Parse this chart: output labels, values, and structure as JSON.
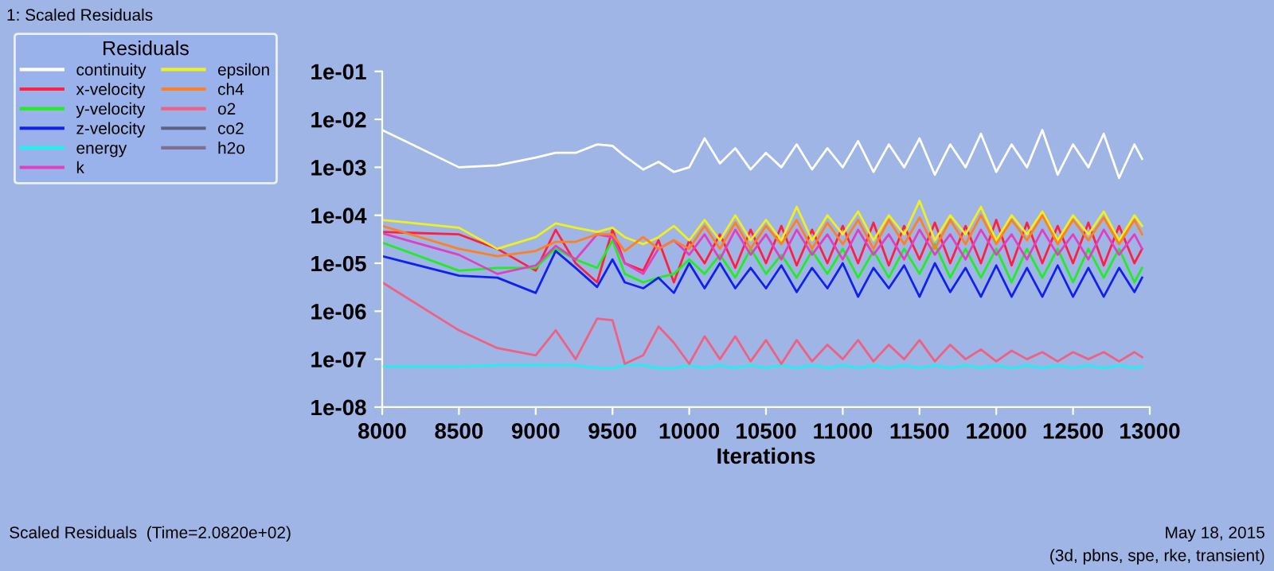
{
  "chart_data": {
    "type": "line",
    "xlabel": "Iterations",
    "legend_title": "Residuals",
    "legend": "top left",
    "log": "y",
    "grid": false,
    "marker": "none",
    "line_style": "solid",
    "annotations": [
      "1: Scaled Residuals",
      "Scaled Residuals  (Time=2.0820e+02)",
      "May 18, 2015",
      "(3d, pbns, spe, rke, transient)"
    ],
    "xlim": [
      8000,
      13000
    ],
    "xticks": [
      8000,
      8500,
      9000,
      9500,
      10000,
      10500,
      11000,
      11500,
      12000,
      12500,
      13000
    ],
    "ylim": [
      1e-08,
      0.1
    ],
    "yticks": [
      {
        "value": 1e-08,
        "label": "1e-08"
      },
      {
        "value": 1e-07,
        "label": "1e-07"
      },
      {
        "value": 1e-06,
        "label": "1e-06"
      },
      {
        "value": 1e-05,
        "label": "1e-05"
      },
      {
        "value": 0.0001,
        "label": "1e-04"
      },
      {
        "value": 0.001,
        "label": "1e-03"
      },
      {
        "value": 0.01,
        "label": "1e-02"
      },
      {
        "value": 0.1,
        "label": "1e-01"
      }
    ],
    "x": [
      8000,
      8500,
      8750,
      9000,
      9130,
      9260,
      9400,
      9500,
      9580,
      9700,
      9800,
      9900,
      10000,
      10100,
      10200,
      10300,
      10400,
      10500,
      10600,
      10700,
      10800,
      10900,
      11000,
      11100,
      11200,
      11300,
      11400,
      11500,
      11600,
      11700,
      11800,
      11900,
      12000,
      12100,
      12200,
      12300,
      12400,
      12500,
      12600,
      12700,
      12800,
      12900,
      12950
    ],
    "series": [
      {
        "name": "continuity",
        "color": "#ffffff",
        "values": [
          0.006,
          0.001,
          0.0011,
          0.0016,
          0.002,
          0.002,
          0.003,
          0.0028,
          0.0017,
          0.0009,
          0.0013,
          0.0008,
          0.001,
          0.004,
          0.0012,
          0.0025,
          0.0009,
          0.002,
          0.001,
          0.003,
          0.0009,
          0.0025,
          0.001,
          0.0035,
          0.0008,
          0.003,
          0.001,
          0.004,
          0.0007,
          0.003,
          0.001,
          0.005,
          0.0008,
          0.003,
          0.001,
          0.006,
          0.0007,
          0.003,
          0.001,
          0.005,
          0.0006,
          0.003,
          0.0015
        ]
      },
      {
        "name": "x-velocity",
        "color": "#ff2040",
        "values": [
          4.5e-05,
          4e-05,
          2e-05,
          7e-06,
          5e-05,
          1e-05,
          4e-06,
          5e-05,
          1e-05,
          7e-06,
          3e-05,
          4e-06,
          3e-05,
          1e-05,
          4e-05,
          8e-06,
          5e-05,
          1e-05,
          6e-05,
          9e-06,
          5e-05,
          1e-05,
          6e-05,
          1e-05,
          7e-05,
          9e-06,
          6e-05,
          1.2e-05,
          7e-05,
          1e-05,
          6e-05,
          1e-05,
          8e-05,
          9e-06,
          7e-05,
          1e-05,
          6e-05,
          1e-05,
          7e-05,
          9e-06,
          6e-05,
          1e-05,
          2e-05
        ]
      },
      {
        "name": "y-velocity",
        "color": "#20ee20",
        "values": [
          2.7e-05,
          7e-06,
          8e-06,
          8e-06,
          2e-05,
          1.2e-05,
          8e-06,
          3e-05,
          6e-06,
          4e-06,
          5e-06,
          6e-06,
          1.2e-05,
          6e-06,
          1.5e-05,
          5e-06,
          2e-05,
          6e-06,
          1.5e-05,
          5e-06,
          1.8e-05,
          6e-06,
          2e-05,
          5e-06,
          1.8e-05,
          5e-06,
          2e-05,
          6e-06,
          2.5e-05,
          5e-06,
          2e-05,
          5e-06,
          2e-05,
          4e-06,
          2e-05,
          5e-06,
          2e-05,
          4e-06,
          2e-05,
          5e-06,
          2e-05,
          4e-06,
          8e-06
        ]
      },
      {
        "name": "z-velocity",
        "color": "#1020f0",
        "values": [
          1.4e-05,
          5.5e-06,
          5e-06,
          2.4e-06,
          1.8e-05,
          8e-06,
          3.2e-06,
          1.2e-05,
          4e-06,
          3e-06,
          5e-06,
          2.4e-06,
          1e-05,
          3e-06,
          1e-05,
          3e-06,
          8e-06,
          3e-06,
          9e-06,
          2.5e-06,
          8e-06,
          3e-06,
          1e-05,
          2e-06,
          8e-06,
          3e-06,
          9e-06,
          2e-06,
          1e-05,
          2.5e-06,
          8e-06,
          2e-06,
          9e-06,
          2e-06,
          8e-06,
          2e-06,
          9e-06,
          2e-06,
          8e-06,
          2e-06,
          8e-06,
          2.5e-06,
          5e-06
        ]
      },
      {
        "name": "energy",
        "color": "#20f0f0",
        "values": [
          7e-08,
          7e-08,
          7.5e-08,
          7.5e-08,
          7.5e-08,
          7.5e-08,
          6.5e-08,
          6.5e-08,
          7.5e-08,
          7.5e-08,
          6.5e-08,
          6.5e-08,
          7.5e-08,
          6.5e-08,
          7.5e-08,
          6.5e-08,
          7.5e-08,
          6.5e-08,
          7.5e-08,
          6.5e-08,
          7.5e-08,
          6.5e-08,
          7.5e-08,
          6.5e-08,
          7.5e-08,
          6.5e-08,
          7.5e-08,
          6.5e-08,
          7.5e-08,
          6.5e-08,
          7.5e-08,
          6.5e-08,
          7.5e-08,
          6.5e-08,
          7.5e-08,
          6.5e-08,
          7.5e-08,
          6.5e-08,
          7.5e-08,
          6.5e-08,
          7.5e-08,
          6.5e-08,
          7e-08
        ]
      },
      {
        "name": "k",
        "color": "#e040c0",
        "values": [
          4.2e-05,
          1.5e-05,
          6e-06,
          9e-06,
          2.3e-05,
          1.2e-05,
          4e-05,
          3.5e-05,
          1e-05,
          6e-06,
          2e-05,
          3e-05,
          1.5e-05,
          4e-05,
          1.2e-05,
          5e-05,
          1.5e-05,
          4e-05,
          1.2e-05,
          5e-05,
          1.5e-05,
          4e-05,
          1.2e-05,
          5e-05,
          1.5e-05,
          4e-05,
          1.2e-05,
          5e-05,
          1.5e-05,
          4e-05,
          1.2e-05,
          5e-05,
          1.5e-05,
          4e-05,
          1.2e-05,
          5e-05,
          1.5e-05,
          4e-05,
          1.2e-05,
          5e-05,
          1.5e-05,
          4e-05,
          2e-05
        ]
      },
      {
        "name": "epsilon",
        "color": "#f0f020",
        "values": [
          8e-05,
          5.5e-05,
          2e-05,
          3.5e-05,
          6.8e-05,
          5.5e-05,
          4.5e-05,
          5.5e-05,
          3.5e-05,
          2.5e-05,
          3.5e-05,
          6e-05,
          3e-05,
          8e-05,
          3e-05,
          0.0001,
          3e-05,
          8e-05,
          3e-05,
          0.00015,
          3e-05,
          0.0001,
          4e-05,
          0.00012,
          3e-05,
          0.0001,
          4e-05,
          0.0002,
          3e-05,
          0.0001,
          4e-05,
          0.00015,
          3e-05,
          0.0001,
          4e-05,
          0.00012,
          3e-05,
          0.0001,
          4e-05,
          0.00012,
          3e-05,
          0.0001,
          6e-05
        ]
      },
      {
        "name": "ch4",
        "color": "#ff8020",
        "values": [
          6e-05,
          2e-05,
          1.4e-05,
          1.8e-05,
          2.8e-05,
          2.8e-05,
          4e-05,
          4e-05,
          1.8e-05,
          3.5e-05,
          2e-05,
          3e-05,
          2e-05,
          6e-05,
          2e-05,
          7e-05,
          2e-05,
          6e-05,
          2.5e-05,
          8e-05,
          2e-05,
          7e-05,
          2.5e-05,
          8e-05,
          2e-05,
          8e-05,
          2.5e-05,
          9e-05,
          2e-05,
          8e-05,
          2.5e-05,
          0.0001,
          2.5e-05,
          8e-05,
          3e-05,
          0.0001,
          2.5e-05,
          8e-05,
          3e-05,
          9e-05,
          2.5e-05,
          8e-05,
          4e-05
        ]
      },
      {
        "name": "o2",
        "color": "#f06080",
        "values": [
          4e-06,
          4e-07,
          1.7e-07,
          1.2e-07,
          4e-07,
          1e-07,
          7e-07,
          6.5e-07,
          8e-08,
          1.2e-07,
          4.8e-07,
          2.2e-07,
          8e-08,
          3e-07,
          1e-07,
          3e-07,
          9e-08,
          2.5e-07,
          8e-08,
          2.5e-07,
          9e-08,
          2e-07,
          1e-07,
          2.5e-07,
          9e-08,
          2e-07,
          1e-07,
          2.5e-07,
          9e-08,
          2e-07,
          1e-07,
          1.6e-07,
          9e-08,
          1.5e-07,
          1e-07,
          1.4e-07,
          9e-08,
          1.4e-07,
          1e-07,
          1.4e-07,
          9e-08,
          1.4e-07,
          1.1e-07
        ]
      },
      {
        "name": "co2",
        "color": "#606080",
        "values": [
          null,
          null,
          null,
          null,
          null,
          null,
          null,
          null,
          null,
          null,
          null,
          null,
          null,
          null,
          null,
          null,
          null,
          null,
          null,
          null,
          null,
          null,
          null,
          null,
          null,
          null,
          null,
          null,
          null,
          null,
          null,
          null,
          null,
          null,
          null,
          null,
          null,
          null,
          null,
          null,
          null,
          null,
          null
        ]
      },
      {
        "name": "h2o",
        "color": "#807090",
        "values": [
          null,
          null,
          null,
          null,
          null,
          null,
          null,
          null,
          null,
          null,
          null,
          null,
          null,
          null,
          null,
          null,
          null,
          null,
          null,
          null,
          null,
          null,
          null,
          null,
          null,
          null,
          null,
          null,
          null,
          null,
          null,
          null,
          null,
          null,
          null,
          null,
          null,
          null,
          null,
          null,
          null,
          null,
          null
        ]
      }
    ]
  }
}
